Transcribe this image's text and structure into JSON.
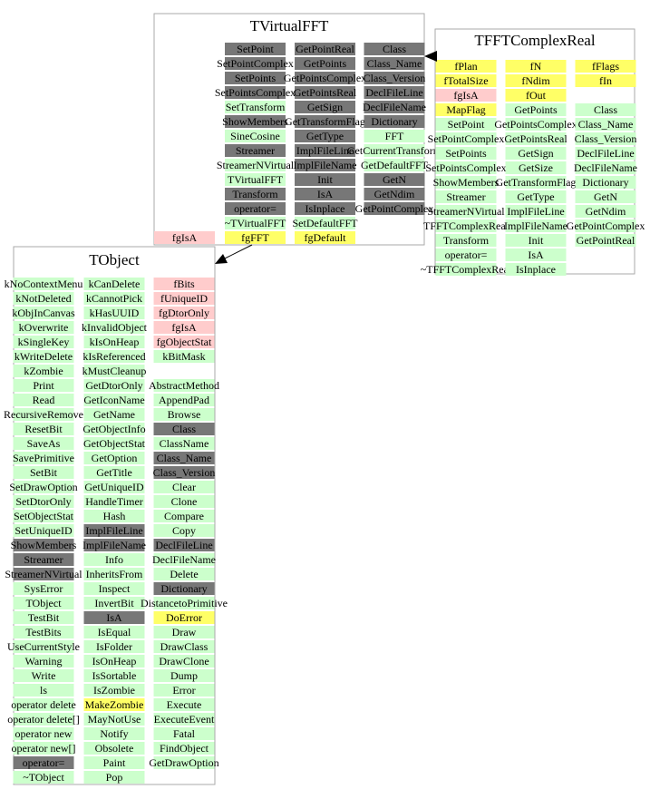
{
  "classes": [
    {
      "name": "TVirtualFFT",
      "columns": [
        [
          null,
          null,
          null,
          null,
          null,
          null,
          null,
          null,
          null,
          null,
          null,
          null,
          null,
          {
            "text": "fgIsA",
            "fill": "#ffcccc"
          }
        ],
        [
          {
            "text": "SetPoint",
            "fill": "#777777"
          },
          {
            "text": "SetPointComplex",
            "fill": "#777777"
          },
          {
            "text": "SetPoints",
            "fill": "#777777"
          },
          {
            "text": "SetPointsComplex",
            "fill": "#777777"
          },
          {
            "text": "SetTransform",
            "fill": "#ccffcc"
          },
          {
            "text": "ShowMembers",
            "fill": "#777777"
          },
          {
            "text": "SineCosine",
            "fill": "#ccffcc"
          },
          {
            "text": "Streamer",
            "fill": "#777777"
          },
          {
            "text": "StreamerNVirtual",
            "fill": "#ccffcc"
          },
          {
            "text": "TVirtualFFT",
            "fill": "#ccffcc"
          },
          {
            "text": "Transform",
            "fill": "#777777"
          },
          {
            "text": "operator=",
            "fill": "#777777"
          },
          {
            "text": "~TVirtualFFT",
            "fill": "#ccffcc"
          },
          {
            "text": "fgFFT",
            "fill": "#ffff66"
          }
        ],
        [
          {
            "text": "GetPointReal",
            "fill": "#777777"
          },
          {
            "text": "GetPoints",
            "fill": "#777777"
          },
          {
            "text": "GetPointsComplex",
            "fill": "#777777"
          },
          {
            "text": "GetPointsReal",
            "fill": "#777777"
          },
          {
            "text": "GetSign",
            "fill": "#777777"
          },
          {
            "text": "GetTransformFlag",
            "fill": "#777777"
          },
          {
            "text": "GetType",
            "fill": "#777777"
          },
          {
            "text": "ImplFileLine",
            "fill": "#777777"
          },
          {
            "text": "ImplFileName",
            "fill": "#777777"
          },
          {
            "text": "Init",
            "fill": "#777777"
          },
          {
            "text": "IsA",
            "fill": "#777777"
          },
          {
            "text": "IsInplace",
            "fill": "#777777"
          },
          {
            "text": "SetDefaultFFT",
            "fill": "#ccffcc"
          },
          {
            "text": "fgDefault",
            "fill": "#ffff66"
          }
        ],
        [
          {
            "text": "Class",
            "fill": "#777777"
          },
          {
            "text": "Class_Name",
            "fill": "#777777"
          },
          {
            "text": "Class_Version",
            "fill": "#777777"
          },
          {
            "text": "DeclFileLine",
            "fill": "#777777"
          },
          {
            "text": "DeclFileName",
            "fill": "#777777"
          },
          {
            "text": "Dictionary",
            "fill": "#777777"
          },
          {
            "text": "FFT",
            "fill": "#ccffcc"
          },
          {
            "text": "GetCurrentTransform",
            "fill": "#ccffcc"
          },
          {
            "text": "GetDefaultFFT",
            "fill": "#ccffcc"
          },
          {
            "text": "GetN",
            "fill": "#777777"
          },
          {
            "text": "GetNdim",
            "fill": "#777777"
          },
          {
            "text": "GetPointComplex",
            "fill": "#777777"
          }
        ]
      ]
    },
    {
      "name": "TFFTComplexReal",
      "columns": [
        [
          {
            "text": "fPlan",
            "fill": "#ffff66"
          },
          {
            "text": "fTotalSize",
            "fill": "#ffff66"
          },
          {
            "text": "fgIsA",
            "fill": "#ffcccc"
          },
          {
            "text": "MapFlag",
            "fill": "#ffff66"
          },
          {
            "text": "SetPoint",
            "fill": "#ccffcc"
          },
          {
            "text": "SetPointComplex",
            "fill": "#ccffcc"
          },
          {
            "text": "SetPoints",
            "fill": "#ccffcc"
          },
          {
            "text": "SetPointsComplex",
            "fill": "#ccffcc"
          },
          {
            "text": "ShowMembers",
            "fill": "#ccffcc"
          },
          {
            "text": "Streamer",
            "fill": "#ccffcc"
          },
          {
            "text": "StreamerNVirtual",
            "fill": "#ccffcc"
          },
          {
            "text": "TFFTComplexReal",
            "fill": "#ccffcc"
          },
          {
            "text": "Transform",
            "fill": "#ccffcc"
          },
          {
            "text": "operator=",
            "fill": "#ccffcc"
          },
          {
            "text": "~TFFTComplexReal",
            "fill": "#ccffcc"
          }
        ],
        [
          {
            "text": "fN",
            "fill": "#ffff66"
          },
          {
            "text": "fNdim",
            "fill": "#ffff66"
          },
          {
            "text": "fOut",
            "fill": "#ffff66"
          },
          {
            "text": "GetPoints",
            "fill": "#ccffcc"
          },
          {
            "text": "GetPointsComplex",
            "fill": "#ccffcc"
          },
          {
            "text": "GetPointsReal",
            "fill": "#ccffcc"
          },
          {
            "text": "GetSign",
            "fill": "#ccffcc"
          },
          {
            "text": "GetSize",
            "fill": "#ccffcc"
          },
          {
            "text": "GetTransformFlag",
            "fill": "#ccffcc"
          },
          {
            "text": "GetType",
            "fill": "#ccffcc"
          },
          {
            "text": "ImplFileLine",
            "fill": "#ccffcc"
          },
          {
            "text": "ImplFileName",
            "fill": "#ccffcc"
          },
          {
            "text": "Init",
            "fill": "#ccffcc"
          },
          {
            "text": "IsA",
            "fill": "#ccffcc"
          },
          {
            "text": "IsInplace",
            "fill": "#ccffcc"
          }
        ],
        [
          {
            "text": "fFlags",
            "fill": "#ffff66"
          },
          {
            "text": "fIn",
            "fill": "#ffff66"
          },
          null,
          {
            "text": "Class",
            "fill": "#ccffcc"
          },
          {
            "text": "Class_Name",
            "fill": "#ccffcc"
          },
          {
            "text": "Class_Version",
            "fill": "#ccffcc"
          },
          {
            "text": "DeclFileLine",
            "fill": "#ccffcc"
          },
          {
            "text": "DeclFileName",
            "fill": "#ccffcc"
          },
          {
            "text": "Dictionary",
            "fill": "#ccffcc"
          },
          {
            "text": "GetN",
            "fill": "#ccffcc"
          },
          {
            "text": "GetNdim",
            "fill": "#ccffcc"
          },
          {
            "text": "GetPointComplex",
            "fill": "#ccffcc"
          },
          {
            "text": "GetPointReal",
            "fill": "#ccffcc"
          }
        ]
      ]
    },
    {
      "name": "TObject",
      "columns": [
        [
          {
            "text": "kNoContextMenu",
            "fill": "#ccffcc"
          },
          {
            "text": "kNotDeleted",
            "fill": "#ccffcc"
          },
          {
            "text": "kObjInCanvas",
            "fill": "#ccffcc"
          },
          {
            "text": "kOverwrite",
            "fill": "#ccffcc"
          },
          {
            "text": "kSingleKey",
            "fill": "#ccffcc"
          },
          {
            "text": "kWriteDelete",
            "fill": "#ccffcc"
          },
          {
            "text": "kZombie",
            "fill": "#ccffcc"
          },
          {
            "text": "Print",
            "fill": "#ccffcc"
          },
          {
            "text": "Read",
            "fill": "#ccffcc"
          },
          {
            "text": "RecursiveRemove",
            "fill": "#ccffcc"
          },
          {
            "text": "ResetBit",
            "fill": "#ccffcc"
          },
          {
            "text": "SaveAs",
            "fill": "#ccffcc"
          },
          {
            "text": "SavePrimitive",
            "fill": "#ccffcc"
          },
          {
            "text": "SetBit",
            "fill": "#ccffcc"
          },
          {
            "text": "SetDrawOption",
            "fill": "#ccffcc"
          },
          {
            "text": "SetDtorOnly",
            "fill": "#ccffcc"
          },
          {
            "text": "SetObjectStat",
            "fill": "#ccffcc"
          },
          {
            "text": "SetUniqueID",
            "fill": "#ccffcc"
          },
          {
            "text": "ShowMembers",
            "fill": "#777777"
          },
          {
            "text": "Streamer",
            "fill": "#777777"
          },
          {
            "text": "StreamerNVirtual",
            "fill": "#777777"
          },
          {
            "text": "SysError",
            "fill": "#ccffcc"
          },
          {
            "text": "TObject",
            "fill": "#ccffcc"
          },
          {
            "text": "TestBit",
            "fill": "#ccffcc"
          },
          {
            "text": "TestBits",
            "fill": "#ccffcc"
          },
          {
            "text": "UseCurrentStyle",
            "fill": "#ccffcc"
          },
          {
            "text": "Warning",
            "fill": "#ccffcc"
          },
          {
            "text": "Write",
            "fill": "#ccffcc"
          },
          {
            "text": "ls",
            "fill": "#ccffcc"
          },
          {
            "text": "operator delete",
            "fill": "#ccffcc"
          },
          {
            "text": "operator delete[]",
            "fill": "#ccffcc"
          },
          {
            "text": "operator new",
            "fill": "#ccffcc"
          },
          {
            "text": "operator new[]",
            "fill": "#ccffcc"
          },
          {
            "text": "operator=",
            "fill": "#777777"
          },
          {
            "text": "~TObject",
            "fill": "#ccffcc"
          }
        ],
        [
          {
            "text": "kCanDelete",
            "fill": "#ccffcc"
          },
          {
            "text": "kCannotPick",
            "fill": "#ccffcc"
          },
          {
            "text": "kHasUUID",
            "fill": "#ccffcc"
          },
          {
            "text": "kInvalidObject",
            "fill": "#ccffcc"
          },
          {
            "text": "kIsOnHeap",
            "fill": "#ccffcc"
          },
          {
            "text": "kIsReferenced",
            "fill": "#ccffcc"
          },
          {
            "text": "kMustCleanup",
            "fill": "#ccffcc"
          },
          {
            "text": "GetDtorOnly",
            "fill": "#ccffcc"
          },
          {
            "text": "GetIconName",
            "fill": "#ccffcc"
          },
          {
            "text": "GetName",
            "fill": "#ccffcc"
          },
          {
            "text": "GetObjectInfo",
            "fill": "#ccffcc"
          },
          {
            "text": "GetObjectStat",
            "fill": "#ccffcc"
          },
          {
            "text": "GetOption",
            "fill": "#ccffcc"
          },
          {
            "text": "GetTitle",
            "fill": "#ccffcc"
          },
          {
            "text": "GetUniqueID",
            "fill": "#ccffcc"
          },
          {
            "text": "HandleTimer",
            "fill": "#ccffcc"
          },
          {
            "text": "Hash",
            "fill": "#ccffcc"
          },
          {
            "text": "ImplFileLine",
            "fill": "#777777"
          },
          {
            "text": "ImplFileName",
            "fill": "#777777"
          },
          {
            "text": "Info",
            "fill": "#ccffcc"
          },
          {
            "text": "InheritsFrom",
            "fill": "#ccffcc"
          },
          {
            "text": "Inspect",
            "fill": "#ccffcc"
          },
          {
            "text": "InvertBit",
            "fill": "#ccffcc"
          },
          {
            "text": "IsA",
            "fill": "#777777"
          },
          {
            "text": "IsEqual",
            "fill": "#ccffcc"
          },
          {
            "text": "IsFolder",
            "fill": "#ccffcc"
          },
          {
            "text": "IsOnHeap",
            "fill": "#ccffcc"
          },
          {
            "text": "IsSortable",
            "fill": "#ccffcc"
          },
          {
            "text": "IsZombie",
            "fill": "#ccffcc"
          },
          {
            "text": "MakeZombie",
            "fill": "#ffff66"
          },
          {
            "text": "MayNotUse",
            "fill": "#ccffcc"
          },
          {
            "text": "Notify",
            "fill": "#ccffcc"
          },
          {
            "text": "Obsolete",
            "fill": "#ccffcc"
          },
          {
            "text": "Paint",
            "fill": "#ccffcc"
          },
          {
            "text": "Pop",
            "fill": "#ccffcc"
          }
        ],
        [
          {
            "text": "fBits",
            "fill": "#ffcccc"
          },
          {
            "text": "fUniqueID",
            "fill": "#ffcccc"
          },
          {
            "text": "fgDtorOnly",
            "fill": "#ffcccc"
          },
          {
            "text": "fgIsA",
            "fill": "#ffcccc"
          },
          {
            "text": "fgObjectStat",
            "fill": "#ffcccc"
          },
          {
            "text": "kBitMask",
            "fill": "#ccffcc"
          },
          null,
          {
            "text": "AbstractMethod",
            "fill": "#ccffcc"
          },
          {
            "text": "AppendPad",
            "fill": "#ccffcc"
          },
          {
            "text": "Browse",
            "fill": "#ccffcc"
          },
          {
            "text": "Class",
            "fill": "#777777"
          },
          {
            "text": "ClassName",
            "fill": "#ccffcc"
          },
          {
            "text": "Class_Name",
            "fill": "#777777"
          },
          {
            "text": "Class_Version",
            "fill": "#777777"
          },
          {
            "text": "Clear",
            "fill": "#ccffcc"
          },
          {
            "text": "Clone",
            "fill": "#ccffcc"
          },
          {
            "text": "Compare",
            "fill": "#ccffcc"
          },
          {
            "text": "Copy",
            "fill": "#ccffcc"
          },
          {
            "text": "DeclFileLine",
            "fill": "#777777"
          },
          {
            "text": "DeclFileName",
            "fill": "#ccffcc"
          },
          {
            "text": "Delete",
            "fill": "#ccffcc"
          },
          {
            "text": "Dictionary",
            "fill": "#777777"
          },
          {
            "text": "DistancetoPrimitive",
            "fill": "#ccffcc"
          },
          {
            "text": "DoError",
            "fill": "#ffff66"
          },
          {
            "text": "Draw",
            "fill": "#ccffcc"
          },
          {
            "text": "DrawClass",
            "fill": "#ccffcc"
          },
          {
            "text": "DrawClone",
            "fill": "#ccffcc"
          },
          {
            "text": "Dump",
            "fill": "#ccffcc"
          },
          {
            "text": "Error",
            "fill": "#ccffcc"
          },
          {
            "text": "Execute",
            "fill": "#ccffcc"
          },
          {
            "text": "ExecuteEvent",
            "fill": "#ccffcc"
          },
          {
            "text": "Fatal",
            "fill": "#ccffcc"
          },
          {
            "text": "FindObject",
            "fill": "#ccffcc"
          },
          {
            "text": "GetDrawOption",
            "fill": "#ccffcc"
          }
        ]
      ]
    }
  ]
}
